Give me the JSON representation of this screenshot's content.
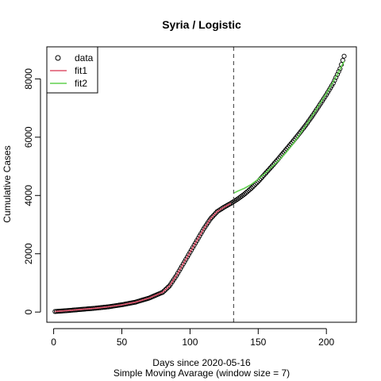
{
  "chart_data": {
    "type": "scatter",
    "title": "Syria / Logistic",
    "xlabel": "Days since 2020-05-16",
    "xlabel2": "Simple Moving Avarage (window size = 7)",
    "ylabel": "Cumulative Cases",
    "xlim": [
      -5,
      222
    ],
    "ylim": [
      -350,
      9100
    ],
    "x_ticks": [
      0,
      50,
      100,
      150,
      200
    ],
    "y_ticks": [
      0,
      2000,
      4000,
      6000,
      8000
    ],
    "vline_x": 132,
    "legend_position": "top-left",
    "legend": [
      {
        "label": "data",
        "kind": "circle",
        "color": "#000000"
      },
      {
        "label": "fit1",
        "kind": "line",
        "color": "#DF536B"
      },
      {
        "label": "fit2",
        "kind": "line",
        "color": "#61D04F"
      }
    ],
    "data_anchors": [
      [
        1,
        20
      ],
      [
        10,
        50
      ],
      [
        20,
        90
      ],
      [
        30,
        130
      ],
      [
        40,
        180
      ],
      [
        50,
        250
      ],
      [
        60,
        340
      ],
      [
        70,
        480
      ],
      [
        80,
        680
      ],
      [
        85,
        900
      ],
      [
        90,
        1250
      ],
      [
        95,
        1650
      ],
      [
        100,
        2050
      ],
      [
        105,
        2450
      ],
      [
        110,
        2850
      ],
      [
        115,
        3200
      ],
      [
        120,
        3450
      ],
      [
        125,
        3600
      ],
      [
        130,
        3730
      ],
      [
        135,
        3880
      ],
      [
        140,
        4050
      ],
      [
        145,
        4250
      ],
      [
        150,
        4480
      ],
      [
        155,
        4740
      ],
      [
        160,
        5000
      ],
      [
        165,
        5270
      ],
      [
        170,
        5550
      ],
      [
        175,
        5830
      ],
      [
        180,
        6120
      ],
      [
        185,
        6420
      ],
      [
        190,
        6750
      ],
      [
        195,
        7100
      ],
      [
        200,
        7460
      ],
      [
        205,
        7850
      ],
      [
        210,
        8350
      ],
      [
        213,
        8780
      ]
    ],
    "fit1": [
      [
        1,
        20
      ],
      [
        10,
        50
      ],
      [
        20,
        90
      ],
      [
        30,
        130
      ],
      [
        40,
        180
      ],
      [
        50,
        250
      ],
      [
        60,
        340
      ],
      [
        70,
        480
      ],
      [
        80,
        680
      ],
      [
        85,
        900
      ],
      [
        90,
        1250
      ],
      [
        95,
        1650
      ],
      [
        100,
        2050
      ],
      [
        105,
        2450
      ],
      [
        110,
        2850
      ],
      [
        115,
        3200
      ],
      [
        120,
        3450
      ],
      [
        125,
        3600
      ],
      [
        130,
        3730
      ]
    ],
    "fit2": [
      [
        132,
        4080
      ],
      [
        135,
        4150
      ],
      [
        140,
        4250
      ],
      [
        145,
        4380
      ],
      [
        150,
        4560
      ],
      [
        155,
        4760
      ],
      [
        160,
        4980
      ],
      [
        165,
        5200
      ],
      [
        170,
        5450
      ],
      [
        175,
        5740
      ],
      [
        180,
        6060
      ],
      [
        185,
        6400
      ],
      [
        190,
        6760
      ],
      [
        195,
        7130
      ],
      [
        200,
        7500
      ],
      [
        205,
        7900
      ],
      [
        210,
        8330
      ],
      [
        213,
        8600
      ]
    ]
  }
}
